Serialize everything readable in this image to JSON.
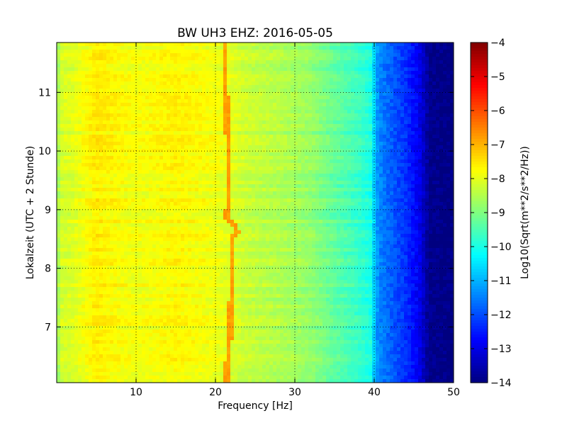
{
  "chart_data": {
    "type": "heatmap",
    "title": "BW UH3 EHZ: 2016-05-05",
    "xlabel": "Frequency [Hz]",
    "ylabel": "Lokalzeit (UTC + 2 Stunde)",
    "xlim": [
      0,
      50
    ],
    "ylim": [
      11.85,
      6.05
    ],
    "x_ticks": [
      10,
      20,
      30,
      40,
      50
    ],
    "y_ticks": [
      7,
      8,
      9,
      10,
      11
    ],
    "grid": true,
    "colormap": "jet",
    "colorbar": {
      "label": "Log10(Sqrt(m**2/s**2/Hz))",
      "range": [
        -14,
        -4
      ],
      "ticks": [
        -4,
        -5,
        -6,
        -7,
        -8,
        -9,
        -10,
        -11,
        -12,
        -13,
        -14
      ]
    },
    "profile": {
      "frequency_hz": [
        0,
        0.3,
        2,
        5,
        10,
        15,
        20,
        24,
        28,
        32,
        35,
        38,
        39.5,
        40.5,
        42,
        44,
        45.5,
        47,
        50
      ],
      "log_amplitude": [
        -9.6,
        -8.2,
        -8.1,
        -7.6,
        -7.9,
        -7.7,
        -7.9,
        -8.3,
        -8.5,
        -8.8,
        -9.3,
        -9.7,
        -10.0,
        -11.4,
        -11.8,
        -12.3,
        -12.8,
        -13.9,
        -14.0
      ]
    },
    "spectral_line": {
      "log_amplitude": -6.8,
      "track": [
        {
          "time": 6.05,
          "freq": 21.3
        },
        {
          "time": 6.5,
          "freq": 21.6
        },
        {
          "time": 7.0,
          "freq": 21.9
        },
        {
          "time": 7.5,
          "freq": 22.0
        },
        {
          "time": 8.0,
          "freq": 22.1
        },
        {
          "time": 8.5,
          "freq": 22.2
        },
        {
          "time": 8.65,
          "freq": 22.8
        },
        {
          "time": 8.85,
          "freq": 21.5
        },
        {
          "time": 9.5,
          "freq": 21.7
        },
        {
          "time": 10.0,
          "freq": 21.6
        },
        {
          "time": 10.5,
          "freq": 21.5
        },
        {
          "time": 11.0,
          "freq": 21.3
        },
        {
          "time": 11.85,
          "freq": 21.1
        }
      ]
    }
  }
}
